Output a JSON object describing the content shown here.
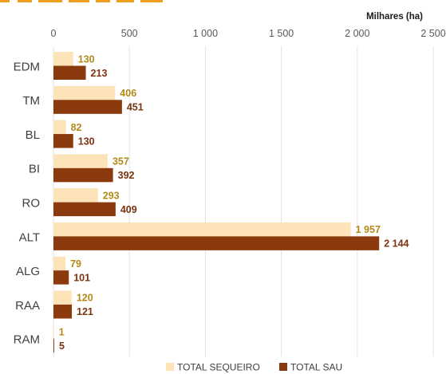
{
  "title": "",
  "chart_data": {
    "type": "bar",
    "orientation": "horizontal",
    "unit_label": "Milhares (ha)",
    "categories": [
      "EDM",
      "TM",
      "BL",
      "BI",
      "RO",
      "ALT",
      "ALG",
      "RAA",
      "RAM"
    ],
    "series": [
      {
        "name": "TOTAL SEQUEIRO",
        "color": "#fde4b8",
        "label_color": "#b38a1a",
        "values": [
          130,
          406,
          82,
          357,
          293,
          1957,
          79,
          120,
          1
        ]
      },
      {
        "name": "TOTAL SAU",
        "color": "#8b3a0e",
        "label_color": "#7a3410",
        "values": [
          213,
          451,
          130,
          392,
          409,
          2144,
          101,
          121,
          5
        ]
      }
    ],
    "value_labels": [
      [
        "130",
        "406",
        "82",
        "357",
        "293",
        "1 957",
        "79",
        "120",
        "1"
      ],
      [
        "213",
        "451",
        "130",
        "392",
        "409",
        "2 144",
        "101",
        "121",
        "5"
      ]
    ],
    "xlim": [
      0,
      2500
    ],
    "x_ticks": [
      0,
      500,
      1000,
      1500,
      2000,
      2500
    ],
    "x_tick_labels": [
      "0",
      "500",
      "1 000",
      "1 500",
      "2 000",
      "2 500"
    ],
    "grid": true,
    "legend_position": "bottom"
  }
}
